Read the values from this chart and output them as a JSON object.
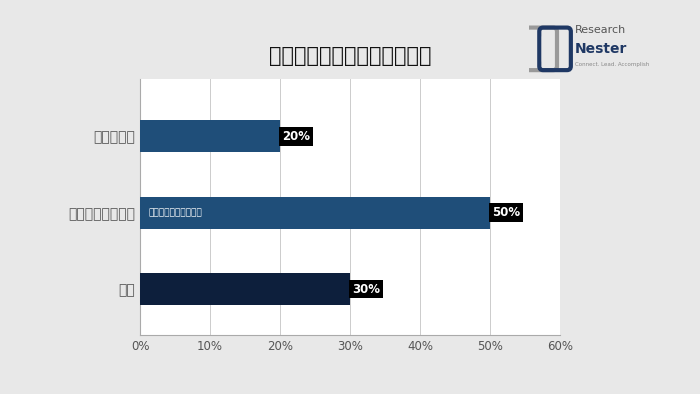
{
  "title": "炭酸ジメチル市場ー地域貢献",
  "categories": [
    "ヨーロッパ",
    "アジア太平洋地域",
    "北米"
  ],
  "values": [
    20,
    50,
    30
  ],
  "bar_colors": [
    "#1f4e79",
    "#1f4e79",
    "#0d1f3c"
  ],
  "value_labels": [
    "20%",
    "50%",
    "30%"
  ],
  "bar_annotation": "工業用床コーティング",
  "xlim": [
    0,
    60
  ],
  "xticks": [
    0,
    10,
    20,
    30,
    40,
    50,
    60
  ],
  "xtick_labels": [
    "0%",
    "10%",
    "20%",
    "30%",
    "40%",
    "50%",
    "60%"
  ],
  "background_color": "#e8e8e8",
  "plot_bg_color": "#ffffff",
  "title_fontsize": 15,
  "label_fontsize": 10,
  "tick_fontsize": 8.5,
  "bar_height": 0.42,
  "logo_text1": "Research",
  "logo_text2": "Nester",
  "logo_subtext": "Connect. Lead. Accomplish"
}
